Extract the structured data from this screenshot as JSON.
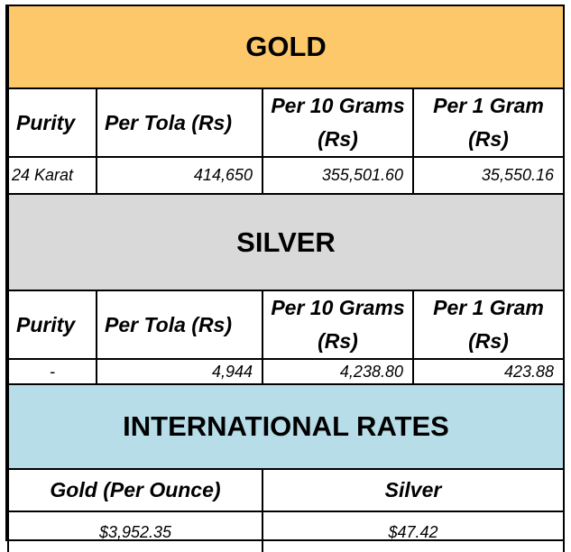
{
  "gold": {
    "title": "GOLD",
    "color": "#fcc86a",
    "headers": [
      "Purity",
      "Per Tola (Rs)",
      "Per 10 Grams (Rs)",
      "Per 1 Gram (Rs)"
    ],
    "row": [
      "24 Karat",
      "414,650",
      "355,501.60",
      "35,550.16"
    ]
  },
  "silver": {
    "title": "SILVER",
    "color": "#d9d9d9",
    "headers": [
      "Purity",
      "Per Tola (Rs)",
      "Per 10 Grams (Rs)",
      "Per 1 Gram (Rs)"
    ],
    "row": [
      "-",
      "4,944",
      "4,238.80",
      "423.88"
    ]
  },
  "international": {
    "title": "INTERNATIONAL RATES",
    "color": "#b7dde8",
    "headers": [
      "Gold (Per Ounce)",
      "Silver"
    ],
    "row": [
      "$3,952.35",
      "$47.42"
    ]
  }
}
